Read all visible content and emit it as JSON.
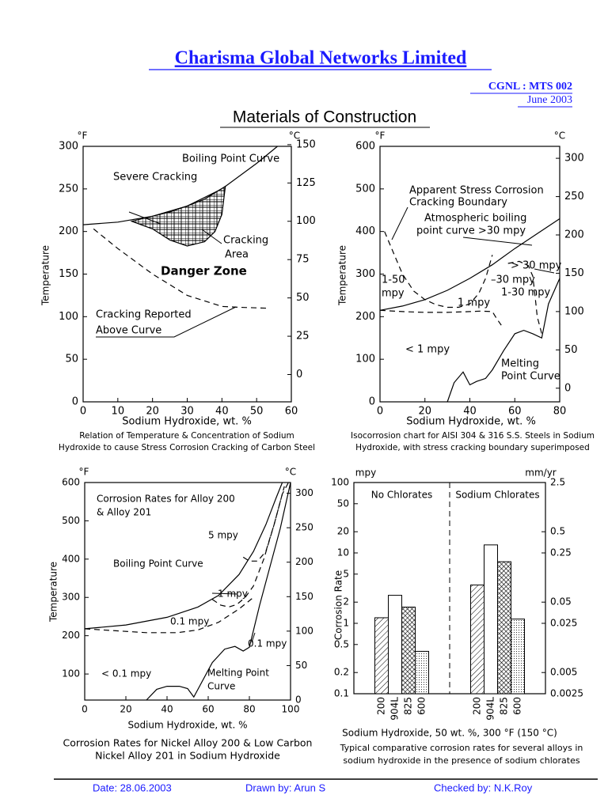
{
  "header": {
    "title": "Charisma Global Networks Limited",
    "code": "CGNL : MTS 002",
    "date": "June 2003",
    "subtitle": "Materials of Construction"
  },
  "footer": {
    "date": "Date: 28.06.2003",
    "drawn_by": "Drawn by: Arun S",
    "checked_by": "Checked by: N.K.Roy"
  },
  "chart_data": [
    {
      "type": "line",
      "xlabel": "Sodium Hydroxide, wt. %",
      "ylabel": "Temperature",
      "y_unit": "°F",
      "y2_unit": "°C",
      "xlim": [
        0,
        60
      ],
      "xticks": [
        0,
        10,
        20,
        30,
        40,
        50,
        60
      ],
      "ylim": [
        0,
        300
      ],
      "yticks": [
        0,
        50,
        100,
        150,
        200,
        250,
        300
      ],
      "y2lim": [
        -17.8,
        148.9
      ],
      "y2ticks": [
        0,
        25,
        50,
        75,
        100,
        125,
        150
      ],
      "series": [
        {
          "x": [
            0,
            10,
            20,
            30,
            40,
            50,
            56
          ],
          "values": [
            208,
            211,
            218,
            230,
            250,
            280,
            300
          ],
          "dashed": false
        },
        {
          "x": [
            3,
            10,
            20,
            30,
            40,
            45,
            53
          ],
          "values": [
            203,
            180,
            150,
            125,
            112,
            111,
            110
          ],
          "dashed": true
        },
        {
          "x": [
            14,
            20,
            25,
            30,
            35,
            41,
            40,
            38,
            35,
            30,
            25,
            20,
            14
          ],
          "values": [
            212,
            218,
            223,
            230,
            238,
            253,
            220,
            200,
            188,
            183,
            190,
            203,
            212
          ],
          "dashed": false,
          "fill": "grid"
        }
      ],
      "annotations": [
        "Boiling Point Curve",
        "Severe Cracking",
        "Cracking",
        "Area",
        "Danger Zone",
        "Cracking Reported",
        "Above Curve"
      ],
      "caption": [
        "Relation of Temperature & Concentration of Sodium",
        "Hydroxide to cause Stress Corrosion Cracking of Carbon Steel"
      ]
    },
    {
      "type": "line",
      "xlabel": "Sodium Hydroxide, wt. %",
      "ylabel": "Temperature",
      "y_unit": "°F",
      "y2_unit": "°C",
      "xlim": [
        0,
        80
      ],
      "xticks": [
        0,
        20,
        40,
        60,
        80
      ],
      "ylim": [
        0,
        600
      ],
      "yticks": [
        0,
        100,
        200,
        300,
        400,
        500,
        600
      ],
      "y2lim": [
        -17.8,
        315.6
      ],
      "y2ticks": [
        0,
        50,
        100,
        150,
        200,
        250,
        300
      ],
      "series": [
        {
          "x": [
            0,
            10,
            20,
            30,
            40,
            50,
            60,
            70,
            80
          ],
          "values": [
            215,
            225,
            240,
            262,
            290,
            322,
            360,
            395,
            430
          ],
          "dashed": false
        },
        {
          "x": [
            2,
            6,
            10,
            15,
            20,
            25,
            30,
            35,
            40,
            44,
            47,
            50
          ],
          "values": [
            400,
            350,
            300,
            260,
            240,
            228,
            222,
            222,
            230,
            255,
            290,
            345
          ],
          "dashed": true
        },
        {
          "x": [
            0,
            10,
            20,
            30,
            40,
            45,
            50,
            52,
            54
          ],
          "values": [
            215,
            212,
            210,
            210,
            212,
            213,
            212,
            195,
            180
          ],
          "dashed": true
        },
        {
          "x": [
            57,
            62,
            66,
            68,
            69,
            70,
            72
          ],
          "values": [
            325,
            330,
            320,
            295,
            250,
            200,
            160
          ],
          "dashed": true
        },
        {
          "x": [
            30,
            33,
            37,
            40,
            43,
            47,
            50,
            55,
            60,
            64,
            68,
            72,
            75,
            80
          ],
          "values": [
            0,
            45,
            70,
            40,
            48,
            55,
            75,
            120,
            160,
            168,
            160,
            150,
            230,
            290
          ],
          "dashed": false
        }
      ],
      "annotations": [
        "Apparent Stress Corrosion",
        "Cracking Boundary",
        "Atmospheric boiling",
        "point curve >30 mpy",
        "> 30 mpy",
        "1-50",
        "mpy",
        "–30 mpy",
        "1-30 mpy",
        "1 mpy",
        "< 1 mpy",
        "Melting",
        "Point Curve"
      ],
      "caption": [
        "Isocorrosion chart for AISI 304 & 316 S.S. Steels in Sodium",
        "Hydroxide, with stress cracking boundary superimposed"
      ]
    },
    {
      "type": "line",
      "xlabel": "Sodium Hydroxide, wt. %",
      "ylabel": "Temperature",
      "y_unit": "°F",
      "y2_unit": "°C",
      "xlim": [
        0,
        100
      ],
      "xticks": [
        0,
        20,
        40,
        60,
        80,
        100
      ],
      "ylim": [
        32,
        600
      ],
      "yticks": [
        100,
        200,
        300,
        400,
        500,
        600
      ],
      "y2lim": [
        0,
        315.6
      ],
      "y2ticks": [
        0,
        50,
        100,
        150,
        200,
        250,
        300
      ],
      "series": [
        {
          "x": [
            0,
            20,
            40,
            55,
            65,
            75,
            82,
            88,
            93,
            96
          ],
          "values": [
            218,
            228,
            248,
            275,
            305,
            360,
            420,
            490,
            560,
            600
          ],
          "dashed": false
        },
        {
          "x": [
            77,
            80,
            84,
            88,
            92,
            96,
            99
          ],
          "values": [
            405,
            395,
            395,
            420,
            490,
            570,
            600
          ],
          "dashed": true
        },
        {
          "x": [
            62,
            66,
            70,
            74,
            78,
            82,
            87,
            92,
            97
          ],
          "values": [
            295,
            280,
            275,
            282,
            300,
            330,
            400,
            490,
            590
          ],
          "dashed": true
        },
        {
          "x": [
            0,
            15,
            30,
            45,
            55,
            65,
            75,
            82
          ],
          "values": [
            218,
            213,
            208,
            208,
            215,
            235,
            270,
            300
          ],
          "dashed": true
        },
        {
          "x": [
            30,
            35,
            40,
            46,
            50,
            53,
            56,
            62,
            68,
            73,
            77,
            80,
            85,
            90,
            95,
            100
          ],
          "values": [
            32,
            60,
            68,
            68,
            62,
            40,
            70,
            130,
            165,
            172,
            160,
            170,
            280,
            380,
            480,
            600
          ],
          "dashed": false
        }
      ],
      "annotations": [
        "Corrosion Rates for Alloy 200",
        "& Alloy 201",
        "5 mpy",
        "Boiling Point Curve",
        "1 mpy",
        "0.1 mpy",
        "0.1 mpy",
        "< 0.1 mpy",
        "Melting Point",
        "Curve"
      ],
      "caption": [
        "Corrosion Rates for Nickel Alloy 200 & Low Carbon",
        "Nickel Alloy 201 in Sodium Hydroxide"
      ]
    },
    {
      "type": "bar",
      "xlabel": "Sodium Hydroxide, 50 wt. %, 300 °F (150 °C)",
      "ylabel": "Corrosion Rate",
      "y_unit": "mpy",
      "y2_unit": "mm/yr",
      "log_y": true,
      "categories": [
        "No Chlorates",
        "Sodium Chlorates"
      ],
      "ylim": [
        0.1,
        100
      ],
      "yticks": [
        0.1,
        0.2,
        0.5,
        1,
        2,
        5,
        10,
        20,
        50,
        100
      ],
      "y2lim": [
        0.0025,
        2.5
      ],
      "y2ticks": [
        0.0025,
        0.005,
        0.025,
        0.05,
        0.25,
        0.5,
        2.5
      ],
      "series": [
        {
          "name": "200",
          "pattern": "hatch",
          "values": [
            1.2,
            3.5
          ]
        },
        {
          "name": "904L",
          "pattern": "plain",
          "values": [
            2.5,
            13
          ]
        },
        {
          "name": "825",
          "pattern": "cross",
          "values": [
            1.7,
            7.5
          ]
        },
        {
          "name": "600",
          "pattern": "dots",
          "values": [
            0.4,
            1.15
          ]
        }
      ],
      "caption": [
        "Typical comparative corrosion rates for several alloys in",
        "sodium hydroxide in the presence of sodium chlorates"
      ]
    }
  ]
}
